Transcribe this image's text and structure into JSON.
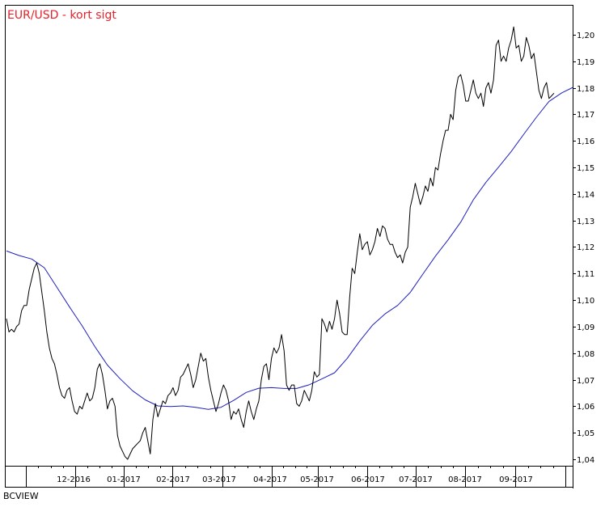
{
  "chart_data": {
    "type": "line",
    "title": "EUR/USD - kort sigt",
    "footer": "BCVIEW",
    "xlabel": "",
    "ylabel": "",
    "ylim": [
      1.0365,
      1.2032
    ],
    "y_ticks": [
      "1,04",
      "1,05",
      "1,06",
      "1,07",
      "1,08",
      "1,09",
      "1,10",
      "1,11",
      "1,12",
      "1,13",
      "1,14",
      "1,15",
      "1,16",
      "1,17",
      "1,18",
      "1,19",
      "1,20"
    ],
    "x_tick_labels": [
      "12-2016",
      "01-2017",
      "02-2017",
      "03-2017",
      "04-2017",
      "05-2017",
      "06-2017",
      "07-2017",
      "08-2017",
      "09-2017"
    ],
    "grid": false,
    "legend": "none",
    "colors": {
      "price": "#000000",
      "moving_average": "#1f1fbf",
      "title": "#e8202a",
      "frame": "#000000"
    },
    "series": [
      {
        "key": "price",
        "values": [
          [
            0,
            1.093
          ],
          [
            2,
            1.088
          ],
          [
            4,
            1.089
          ],
          [
            6,
            1.088
          ],
          [
            8,
            1.09
          ],
          [
            10,
            1.091
          ],
          [
            12,
            1.096
          ],
          [
            14,
            1.098
          ],
          [
            16,
            1.098
          ],
          [
            18,
            1.104
          ],
          [
            20,
            1.108
          ],
          [
            22,
            1.112
          ],
          [
            24,
            1.114
          ],
          [
            26,
            1.11
          ],
          [
            28,
            1.103
          ],
          [
            30,
            1.096
          ],
          [
            32,
            1.088
          ],
          [
            34,
            1.082
          ],
          [
            36,
            1.078
          ],
          [
            38,
            1.076
          ],
          [
            40,
            1.072
          ],
          [
            42,
            1.067
          ],
          [
            44,
            1.064
          ],
          [
            46,
            1.063
          ],
          [
            48,
            1.066
          ],
          [
            50,
            1.067
          ],
          [
            52,
            1.062
          ],
          [
            54,
            1.058
          ],
          [
            56,
            1.057
          ],
          [
            58,
            1.06
          ],
          [
            60,
            1.059
          ],
          [
            62,
            1.062
          ],
          [
            64,
            1.065
          ],
          [
            66,
            1.062
          ],
          [
            68,
            1.063
          ],
          [
            70,
            1.067
          ],
          [
            72,
            1.074
          ],
          [
            74,
            1.076
          ],
          [
            76,
            1.072
          ],
          [
            78,
            1.066
          ],
          [
            80,
            1.059
          ],
          [
            82,
            1.062
          ],
          [
            84,
            1.063
          ],
          [
            86,
            1.06
          ],
          [
            88,
            1.049
          ],
          [
            90,
            1.045
          ],
          [
            92,
            1.043
          ],
          [
            94,
            1.041
          ],
          [
            96,
            1.04
          ],
          [
            98,
            1.042
          ],
          [
            100,
            1.044
          ],
          [
            102,
            1.045
          ],
          [
            104,
            1.046
          ],
          [
            106,
            1.047
          ],
          [
            108,
            1.05
          ],
          [
            110,
            1.052
          ],
          [
            112,
            1.047
          ],
          [
            114,
            1.042
          ],
          [
            116,
            1.055
          ],
          [
            118,
            1.061
          ],
          [
            120,
            1.056
          ],
          [
            122,
            1.059
          ],
          [
            124,
            1.062
          ],
          [
            126,
            1.061
          ],
          [
            128,
            1.064
          ],
          [
            130,
            1.065
          ],
          [
            132,
            1.067
          ],
          [
            134,
            1.064
          ],
          [
            136,
            1.066
          ],
          [
            138,
            1.071
          ],
          [
            140,
            1.072
          ],
          [
            142,
            1.074
          ],
          [
            144,
            1.076
          ],
          [
            146,
            1.072
          ],
          [
            148,
            1.067
          ],
          [
            150,
            1.07
          ],
          [
            152,
            1.075
          ],
          [
            154,
            1.08
          ],
          [
            156,
            1.077
          ],
          [
            158,
            1.078
          ],
          [
            160,
            1.071
          ],
          [
            162,
            1.066
          ],
          [
            164,
            1.062
          ],
          [
            166,
            1.058
          ],
          [
            168,
            1.061
          ],
          [
            170,
            1.065
          ],
          [
            172,
            1.068
          ],
          [
            174,
            1.066
          ],
          [
            176,
            1.062
          ],
          [
            178,
            1.055
          ],
          [
            180,
            1.058
          ],
          [
            182,
            1.057
          ],
          [
            184,
            1.059
          ],
          [
            186,
            1.055
          ],
          [
            188,
            1.052
          ],
          [
            190,
            1.058
          ],
          [
            192,
            1.062
          ],
          [
            194,
            1.058
          ],
          [
            196,
            1.055
          ],
          [
            198,
            1.059
          ],
          [
            200,
            1.062
          ],
          [
            202,
            1.07
          ],
          [
            204,
            1.075
          ],
          [
            206,
            1.076
          ],
          [
            208,
            1.07
          ],
          [
            210,
            1.078
          ],
          [
            212,
            1.082
          ],
          [
            214,
            1.08
          ],
          [
            216,
            1.082
          ],
          [
            218,
            1.087
          ],
          [
            220,
            1.081
          ],
          [
            222,
            1.068
          ],
          [
            224,
            1.066
          ],
          [
            226,
            1.068
          ],
          [
            228,
            1.068
          ],
          [
            230,
            1.061
          ],
          [
            232,
            1.06
          ],
          [
            234,
            1.062
          ],
          [
            236,
            1.066
          ],
          [
            238,
            1.064
          ],
          [
            240,
            1.062
          ],
          [
            242,
            1.066
          ],
          [
            244,
            1.073
          ],
          [
            246,
            1.071
          ],
          [
            248,
            1.072
          ],
          [
            250,
            1.093
          ],
          [
            252,
            1.091
          ],
          [
            254,
            1.088
          ],
          [
            256,
            1.092
          ],
          [
            258,
            1.089
          ],
          [
            260,
            1.093
          ],
          [
            262,
            1.1
          ],
          [
            264,
            1.095
          ],
          [
            266,
            1.088
          ],
          [
            268,
            1.087
          ],
          [
            270,
            1.087
          ],
          [
            272,
            1.101
          ],
          [
            274,
            1.112
          ],
          [
            276,
            1.11
          ],
          [
            278,
            1.118
          ],
          [
            280,
            1.125
          ],
          [
            282,
            1.119
          ],
          [
            284,
            1.121
          ],
          [
            286,
            1.122
          ],
          [
            288,
            1.117
          ],
          [
            290,
            1.119
          ],
          [
            292,
            1.122
          ],
          [
            294,
            1.127
          ],
          [
            296,
            1.124
          ],
          [
            298,
            1.128
          ],
          [
            300,
            1.127
          ],
          [
            302,
            1.123
          ],
          [
            304,
            1.121
          ],
          [
            306,
            1.121
          ],
          [
            308,
            1.118
          ],
          [
            310,
            1.116
          ],
          [
            312,
            1.117
          ],
          [
            314,
            1.114
          ],
          [
            316,
            1.118
          ],
          [
            318,
            1.12
          ],
          [
            320,
            1.135
          ],
          [
            322,
            1.139
          ],
          [
            324,
            1.144
          ],
          [
            326,
            1.14
          ],
          [
            328,
            1.136
          ],
          [
            330,
            1.139
          ],
          [
            332,
            1.143
          ],
          [
            334,
            1.141
          ],
          [
            336,
            1.146
          ],
          [
            338,
            1.143
          ],
          [
            340,
            1.15
          ],
          [
            342,
            1.149
          ],
          [
            344,
            1.155
          ],
          [
            346,
            1.16
          ],
          [
            348,
            1.164
          ],
          [
            350,
            1.164
          ],
          [
            352,
            1.17
          ],
          [
            354,
            1.168
          ],
          [
            356,
            1.179
          ],
          [
            358,
            1.184
          ],
          [
            360,
            1.185
          ],
          [
            362,
            1.181
          ],
          [
            364,
            1.175
          ],
          [
            366,
            1.175
          ],
          [
            368,
            1.179
          ],
          [
            370,
            1.183
          ],
          [
            372,
            1.178
          ],
          [
            374,
            1.176
          ],
          [
            376,
            1.178
          ],
          [
            378,
            1.173
          ],
          [
            380,
            1.18
          ],
          [
            382,
            1.182
          ],
          [
            384,
            1.178
          ],
          [
            386,
            1.183
          ],
          [
            388,
            1.196
          ],
          [
            390,
            1.198
          ],
          [
            392,
            1.19
          ],
          [
            394,
            1.192
          ],
          [
            396,
            1.19
          ],
          [
            398,
            1.195
          ],
          [
            400,
            1.198
          ],
          [
            402,
            1.203
          ],
          [
            404,
            1.195
          ],
          [
            406,
            1.196
          ],
          [
            408,
            1.19
          ],
          [
            410,
            1.192
          ],
          [
            412,
            1.199
          ],
          [
            414,
            1.196
          ],
          [
            416,
            1.191
          ],
          [
            418,
            1.193
          ],
          [
            420,
            1.186
          ],
          [
            422,
            1.179
          ],
          [
            424,
            1.176
          ],
          [
            426,
            1.18
          ],
          [
            428,
            1.182
          ],
          [
            430,
            1.176
          ],
          [
            432,
            1.177
          ],
          [
            434,
            1.178
          ]
        ]
      },
      {
        "key": "moving_average",
        "values": [
          [
            0,
            1.1185
          ],
          [
            10,
            1.1168
          ],
          [
            20,
            1.1155
          ],
          [
            30,
            1.1122
          ],
          [
            40,
            1.1048
          ],
          [
            50,
            1.0974
          ],
          [
            60,
            1.0903
          ],
          [
            70,
            1.0825
          ],
          [
            80,
            1.0755
          ],
          [
            90,
            1.0704
          ],
          [
            100,
            1.0658
          ],
          [
            110,
            1.0624
          ],
          [
            120,
            1.0601
          ],
          [
            130,
            1.0599
          ],
          [
            140,
            1.0601
          ],
          [
            150,
            1.0596
          ],
          [
            160,
            1.0588
          ],
          [
            170,
            1.0596
          ],
          [
            180,
            1.0622
          ],
          [
            190,
            1.0652
          ],
          [
            200,
            1.0668
          ],
          [
            210,
            1.067
          ],
          [
            220,
            1.0667
          ],
          [
            230,
            1.0667
          ],
          [
            240,
            1.0681
          ],
          [
            250,
            1.0703
          ],
          [
            260,
            1.0726
          ],
          [
            270,
            1.078
          ],
          [
            280,
            1.0846
          ],
          [
            290,
            1.0905
          ],
          [
            300,
            1.0948
          ],
          [
            310,
            1.098
          ],
          [
            320,
            1.1029
          ],
          [
            330,
            1.1098
          ],
          [
            340,
            1.1166
          ],
          [
            350,
            1.1227
          ],
          [
            360,
            1.1294
          ],
          [
            370,
            1.1378
          ],
          [
            380,
            1.1444
          ],
          [
            390,
            1.1501
          ],
          [
            400,
            1.156
          ],
          [
            410,
            1.1625
          ],
          [
            420,
            1.1689
          ],
          [
            430,
            1.1749
          ],
          [
            440,
            1.1781
          ],
          [
            449,
            1.1802
          ]
        ]
      }
    ]
  }
}
